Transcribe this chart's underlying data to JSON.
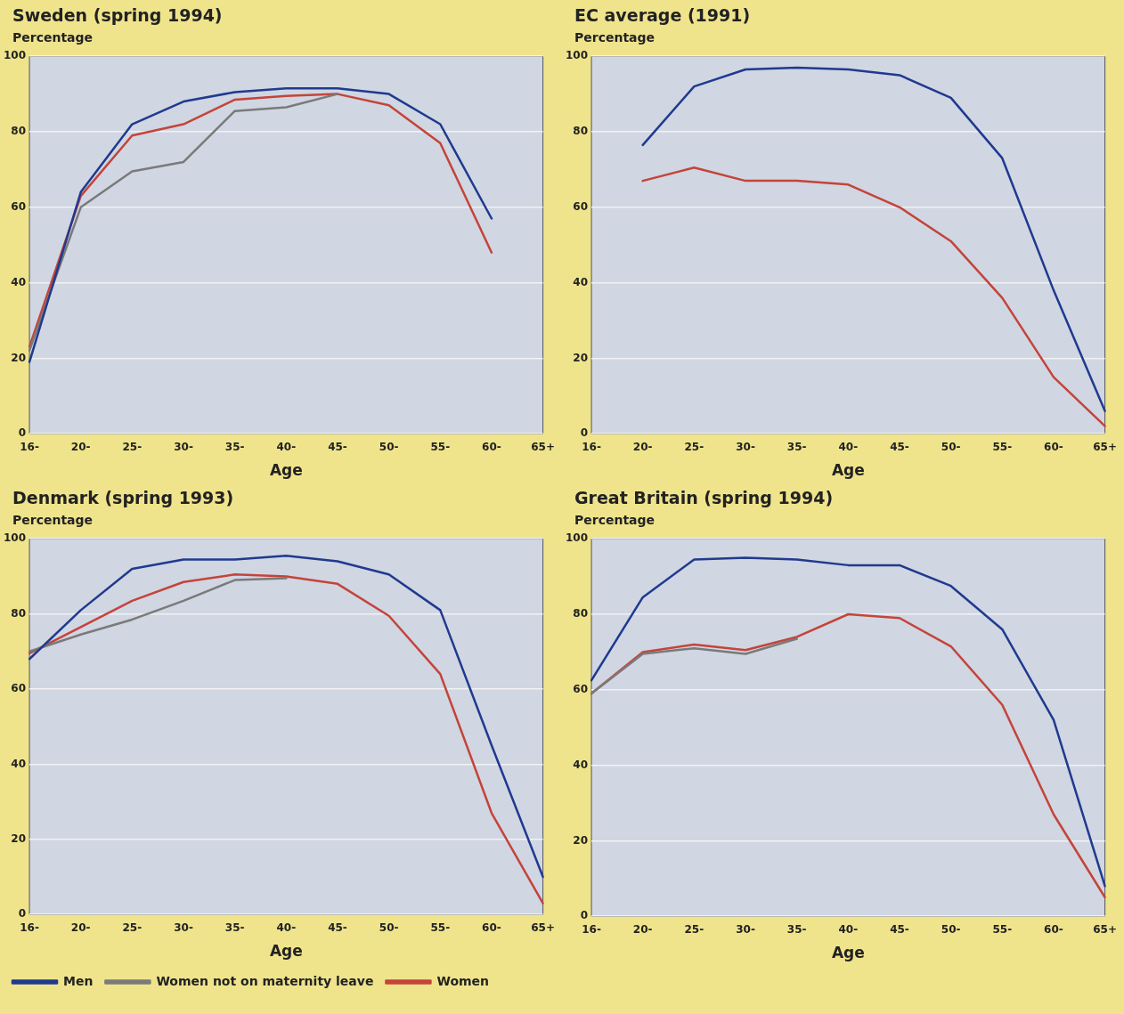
{
  "chart_data": [
    {
      "type": "line",
      "title": "Sweden (spring 1994)",
      "ylabel": "Percentage",
      "xlabel": "Age",
      "categories": [
        "16-",
        "20-",
        "25-",
        "30-",
        "35-",
        "40-",
        "45-",
        "50-",
        "55-",
        "60-",
        "65+"
      ],
      "ylim": [
        0,
        100
      ],
      "yticks": [
        0,
        20,
        40,
        60,
        80,
        100
      ],
      "grid": "y",
      "legend": false,
      "series": [
        {
          "color": "#1f3a8f",
          "values": [
            19,
            64,
            82,
            88,
            90.5,
            91.5,
            91.5,
            90,
            82,
            57,
            null
          ]
        },
        {
          "color": "#7a7a7a",
          "values": [
            22,
            60,
            69.5,
            72,
            85.5,
            86.5,
            90,
            null,
            null,
            null,
            null
          ]
        },
        {
          "color": "#c4443a",
          "values": [
            23,
            63,
            79,
            82,
            88.5,
            89.5,
            90,
            87,
            77,
            48,
            null
          ]
        }
      ]
    },
    {
      "type": "line",
      "title": "EC average (1991)",
      "ylabel": "Percentage",
      "xlabel": "Age",
      "categories": [
        "16-",
        "20-",
        "25-",
        "30-",
        "35-",
        "40-",
        "45-",
        "50-",
        "55-",
        "60-",
        "65+"
      ],
      "ylim": [
        0,
        100
      ],
      "yticks": [
        0,
        20,
        40,
        60,
        80,
        100
      ],
      "grid": "y",
      "legend": false,
      "series": [
        {
          "color": "#1f3a8f",
          "values": [
            null,
            76.5,
            92,
            96.5,
            97,
            96.5,
            95,
            89,
            73,
            38,
            6
          ]
        },
        {
          "color": "#c4443a",
          "values": [
            null,
            67,
            70.5,
            67,
            67,
            66,
            60,
            51,
            36,
            15,
            2
          ]
        }
      ]
    },
    {
      "type": "line",
      "title": "Denmark (spring 1993)",
      "ylabel": "Percentage",
      "xlabel": "Age",
      "categories": [
        "16-",
        "20-",
        "25-",
        "30-",
        "35-",
        "40-",
        "45-",
        "50-",
        "55-",
        "60-",
        "65+"
      ],
      "ylim": [
        0,
        100
      ],
      "yticks": [
        0,
        20,
        40,
        60,
        80,
        100
      ],
      "grid": "y",
      "legend": "bottom",
      "series": [
        {
          "name": "Men",
          "color": "#1f3a8f",
          "values": [
            68,
            81,
            92,
            94.5,
            94.5,
            95.5,
            94,
            90.5,
            81,
            45,
            10
          ]
        },
        {
          "name": "Women not on maternity leave",
          "color": "#7a7a7a",
          "values": [
            70,
            74.5,
            78.5,
            83.5,
            89,
            89.5,
            null,
            null,
            null,
            null,
            null
          ]
        },
        {
          "name": "Women",
          "color": "#c4443a",
          "values": [
            69.5,
            76.5,
            83.5,
            88.5,
            90.5,
            90,
            88,
            79.5,
            64,
            27,
            3
          ]
        }
      ]
    },
    {
      "type": "line",
      "title": "Great Britain (spring 1994)",
      "ylabel": "Percentage",
      "xlabel": "Age",
      "categories": [
        "16-",
        "20-",
        "25-",
        "30-",
        "35-",
        "40-",
        "45-",
        "50-",
        "55-",
        "60-",
        "65+"
      ],
      "ylim": [
        0,
        100
      ],
      "yticks": [
        0,
        20,
        40,
        60,
        80,
        100
      ],
      "grid": "y",
      "legend": false,
      "series": [
        {
          "color": "#1f3a8f",
          "values": [
            62.5,
            84.5,
            94.5,
            95,
            94.5,
            93,
            93,
            87.5,
            76,
            52,
            8
          ]
        },
        {
          "color": "#7a7a7a",
          "values": [
            59,
            69.5,
            71,
            69.5,
            73.5,
            null,
            null,
            null,
            null,
            null,
            null
          ]
        },
        {
          "color": "#c4443a",
          "values": [
            59,
            70,
            72,
            70.5,
            74,
            80,
            79,
            71.5,
            56,
            27,
            5
          ]
        }
      ]
    }
  ]
}
